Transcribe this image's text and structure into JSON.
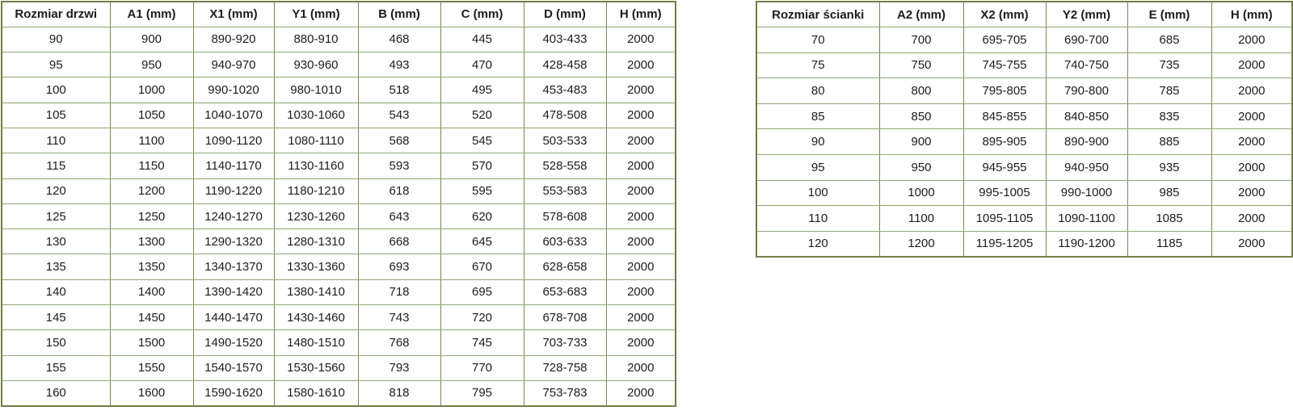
{
  "colors": {
    "background": "#ffffff",
    "text": "#1c1c1c",
    "border_vertical": "#7d864f",
    "border_horizontal": "#8fa872",
    "border_outer": "#747d48"
  },
  "door_table": {
    "headers": [
      "Rozmiar drzwi",
      "A1 (mm)",
      "X1 (mm)",
      "Y1 (mm)",
      "B (mm)",
      "C (mm)",
      "D (mm)",
      "H (mm)"
    ],
    "rows": [
      [
        "90",
        "900",
        "890-920",
        "880-910",
        "468",
        "445",
        "403-433",
        "2000"
      ],
      [
        "95",
        "950",
        "940-970",
        "930-960",
        "493",
        "470",
        "428-458",
        "2000"
      ],
      [
        "100",
        "1000",
        "990-1020",
        "980-1010",
        "518",
        "495",
        "453-483",
        "2000"
      ],
      [
        "105",
        "1050",
        "1040-1070",
        "1030-1060",
        "543",
        "520",
        "478-508",
        "2000"
      ],
      [
        "110",
        "1100",
        "1090-1120",
        "1080-1110",
        "568",
        "545",
        "503-533",
        "2000"
      ],
      [
        "115",
        "1150",
        "1140-1170",
        "1130-1160",
        "593",
        "570",
        "528-558",
        "2000"
      ],
      [
        "120",
        "1200",
        "1190-1220",
        "1180-1210",
        "618",
        "595",
        "553-583",
        "2000"
      ],
      [
        "125",
        "1250",
        "1240-1270",
        "1230-1260",
        "643",
        "620",
        "578-608",
        "2000"
      ],
      [
        "130",
        "1300",
        "1290-1320",
        "1280-1310",
        "668",
        "645",
        "603-633",
        "2000"
      ],
      [
        "135",
        "1350",
        "1340-1370",
        "1330-1360",
        "693",
        "670",
        "628-658",
        "2000"
      ],
      [
        "140",
        "1400",
        "1390-1420",
        "1380-1410",
        "718",
        "695",
        "653-683",
        "2000"
      ],
      [
        "145",
        "1450",
        "1440-1470",
        "1430-1460",
        "743",
        "720",
        "678-708",
        "2000"
      ],
      [
        "150",
        "1500",
        "1490-1520",
        "1480-1510",
        "768",
        "745",
        "703-733",
        "2000"
      ],
      [
        "155",
        "1550",
        "1540-1570",
        "1530-1560",
        "793",
        "770",
        "728-758",
        "2000"
      ],
      [
        "160",
        "1600",
        "1590-1620",
        "1580-1610",
        "818",
        "795",
        "753-783",
        "2000"
      ]
    ]
  },
  "wall_table": {
    "headers": [
      "Rozmiar ścianki",
      "A2 (mm)",
      "X2 (mm)",
      "Y2 (mm)",
      "E (mm)",
      "H (mm)"
    ],
    "rows": [
      [
        "70",
        "700",
        "695-705",
        "690-700",
        "685",
        "2000"
      ],
      [
        "75",
        "750",
        "745-755",
        "740-750",
        "735",
        "2000"
      ],
      [
        "80",
        "800",
        "795-805",
        "790-800",
        "785",
        "2000"
      ],
      [
        "85",
        "850",
        "845-855",
        "840-850",
        "835",
        "2000"
      ],
      [
        "90",
        "900",
        "895-905",
        "890-900",
        "885",
        "2000"
      ],
      [
        "95",
        "950",
        "945-955",
        "940-950",
        "935",
        "2000"
      ],
      [
        "100",
        "1000",
        "995-1005",
        "990-1000",
        "985",
        "2000"
      ],
      [
        "110",
        "1100",
        "1095-1105",
        "1090-1100",
        "1085",
        "2000"
      ],
      [
        "120",
        "1200",
        "1195-1205",
        "1190-1200",
        "1185",
        "2000"
      ]
    ]
  }
}
